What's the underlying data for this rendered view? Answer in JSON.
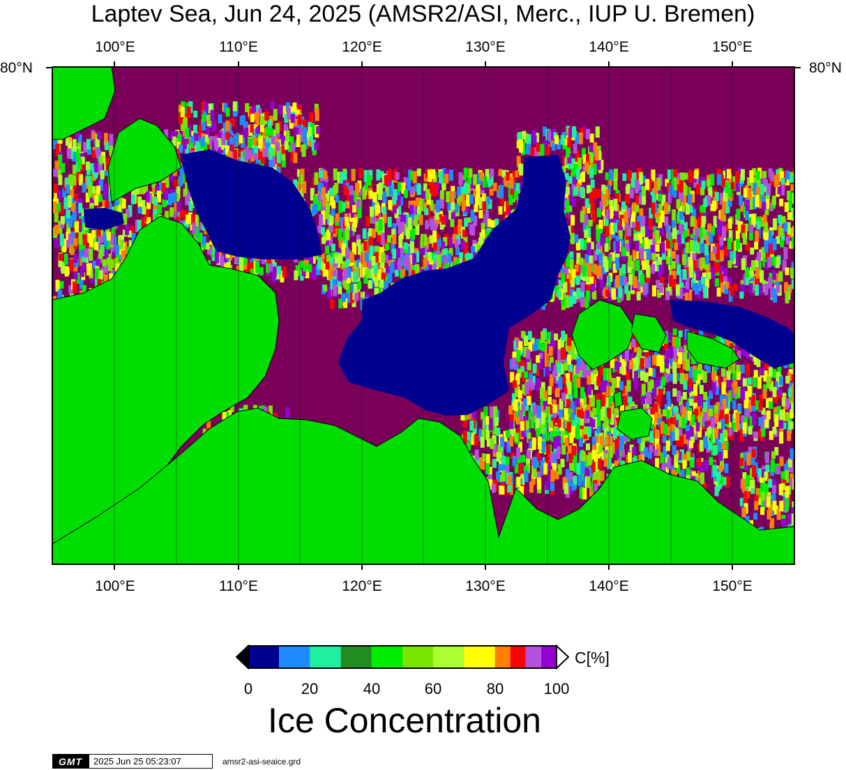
{
  "header": {
    "title": "Laptev Sea, Jun 24, 2025 (AMSR2/ASI, Merc., IUP U. Bremen)"
  },
  "map": {
    "longitude_labels": [
      "100°E",
      "110°E",
      "120°E",
      "130°E",
      "140°E",
      "150°E"
    ],
    "latitude_label": "80°N",
    "land_color": "#00dd00",
    "open_water_color": "#000090"
  },
  "colorbar": {
    "ticks": [
      "0",
      "20",
      "40",
      "60",
      "80",
      "100"
    ],
    "unit": "C[%]",
    "label": "Ice Concentration",
    "colors": [
      "#000090",
      "#1e8cff",
      "#1ef0a0",
      "#228b22",
      "#00ee00",
      "#78e600",
      "#aaff32",
      "#ffff00",
      "#ff7f00",
      "#ff0000",
      "#b450dc",
      "#9600d2"
    ]
  },
  "footer": {
    "logo": "GMT",
    "timestamp": "2025 Jun 25 05:23:07",
    "filename": "amsr2-asi-seaice.grd"
  }
}
